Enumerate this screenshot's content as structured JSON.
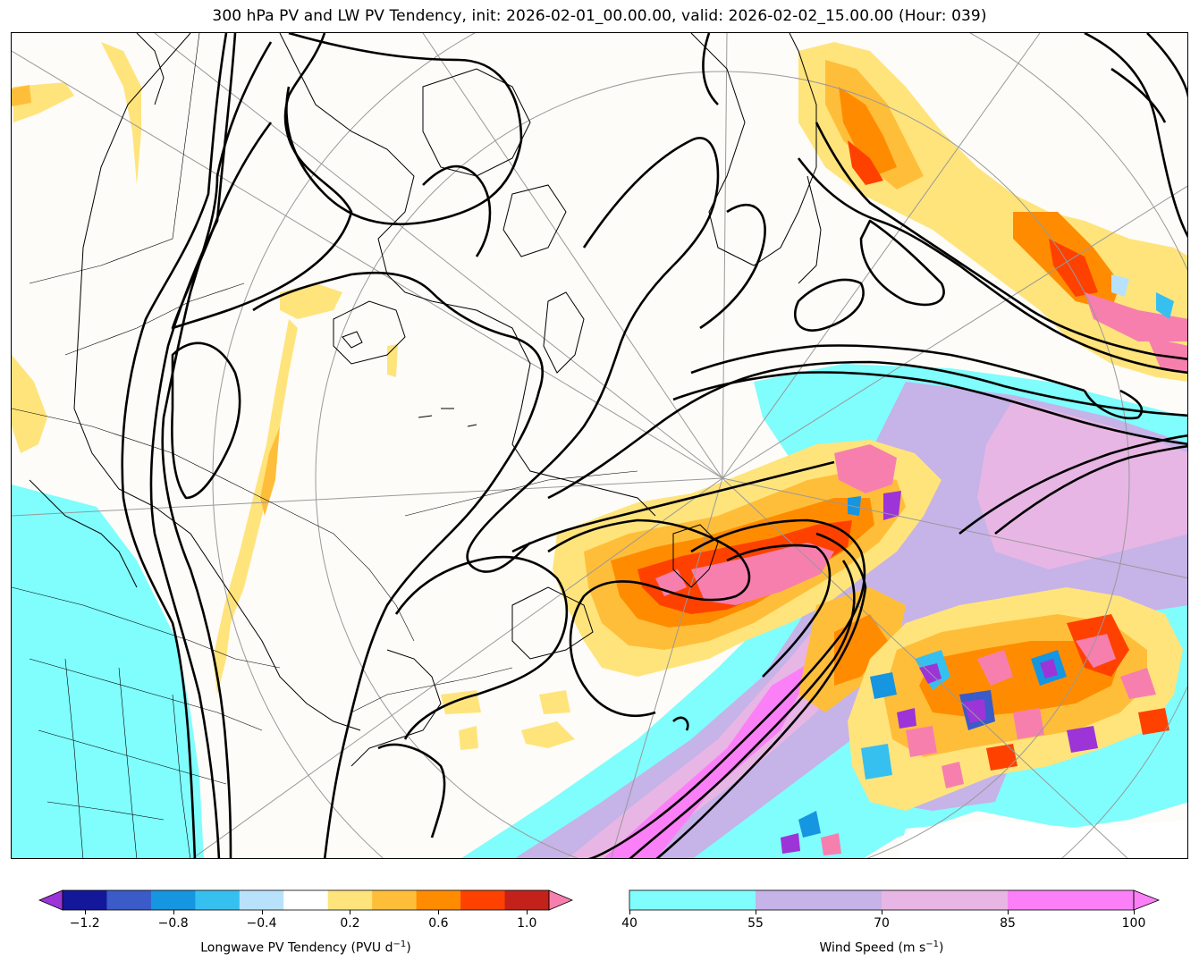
{
  "title": "300 hPa PV and LW PV Tendency, init: 2026-02-01_00.00.00, valid: 2026-02-02_15.00.00 (Hour: 039)",
  "map": {
    "projection": "polar stereographic",
    "features": [
      "coastlines",
      "country-borders",
      "state-provinces",
      "lat-lon-grid",
      "pv-contours",
      "pv-tendency-fill",
      "wind-speed-fill"
    ]
  },
  "pv_tendency_colorbar": {
    "label": "Longwave PV Tendency (PVU d",
    "label_sup": "−1",
    "label_end": ")",
    "ticks": [
      "−1.2",
      "−0.8",
      "−0.4",
      "0.2",
      "0.6",
      "1.0"
    ],
    "extend": "both",
    "colors": [
      "#9c34d8",
      "#13189a",
      "#3a5bc8",
      "#1695e0",
      "#35c0f0",
      "#b8e2fb",
      "#ffffff",
      "#ffe47c",
      "#ffbe3a",
      "#ff8c00",
      "#ff4100",
      "#c2221a",
      "#f77fae"
    ]
  },
  "wind_colorbar": {
    "label": "Wind Speed (m s",
    "label_sup": "−1",
    "label_end": ")",
    "ticks": [
      "40",
      "55",
      "70",
      "85",
      "100"
    ],
    "extend": "max",
    "colors": [
      "#80fdfd",
      "#c6b3e8",
      "#e8b6e4",
      "#fb80f7"
    ]
  }
}
